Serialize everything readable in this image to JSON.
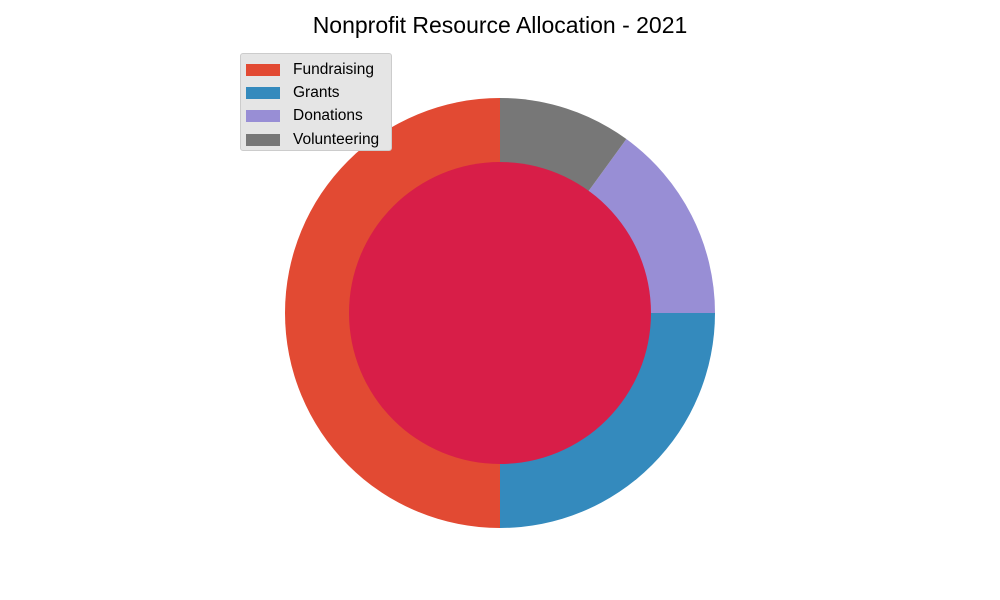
{
  "chart_data": {
    "type": "pie",
    "variant": "donut",
    "title": "Nonprofit Resource Allocation - 2021",
    "categories": [
      "Fundraising",
      "Grants",
      "Donations",
      "Volunteering"
    ],
    "values": [
      50,
      25,
      15,
      10
    ],
    "colors": [
      "#E24A33",
      "#348ABD",
      "#988ED5",
      "#777777"
    ],
    "center_color": "#D81E48",
    "start_angle_deg": 90,
    "direction": "counterclockwise",
    "legend_position": "upper-left",
    "grid": false
  }
}
